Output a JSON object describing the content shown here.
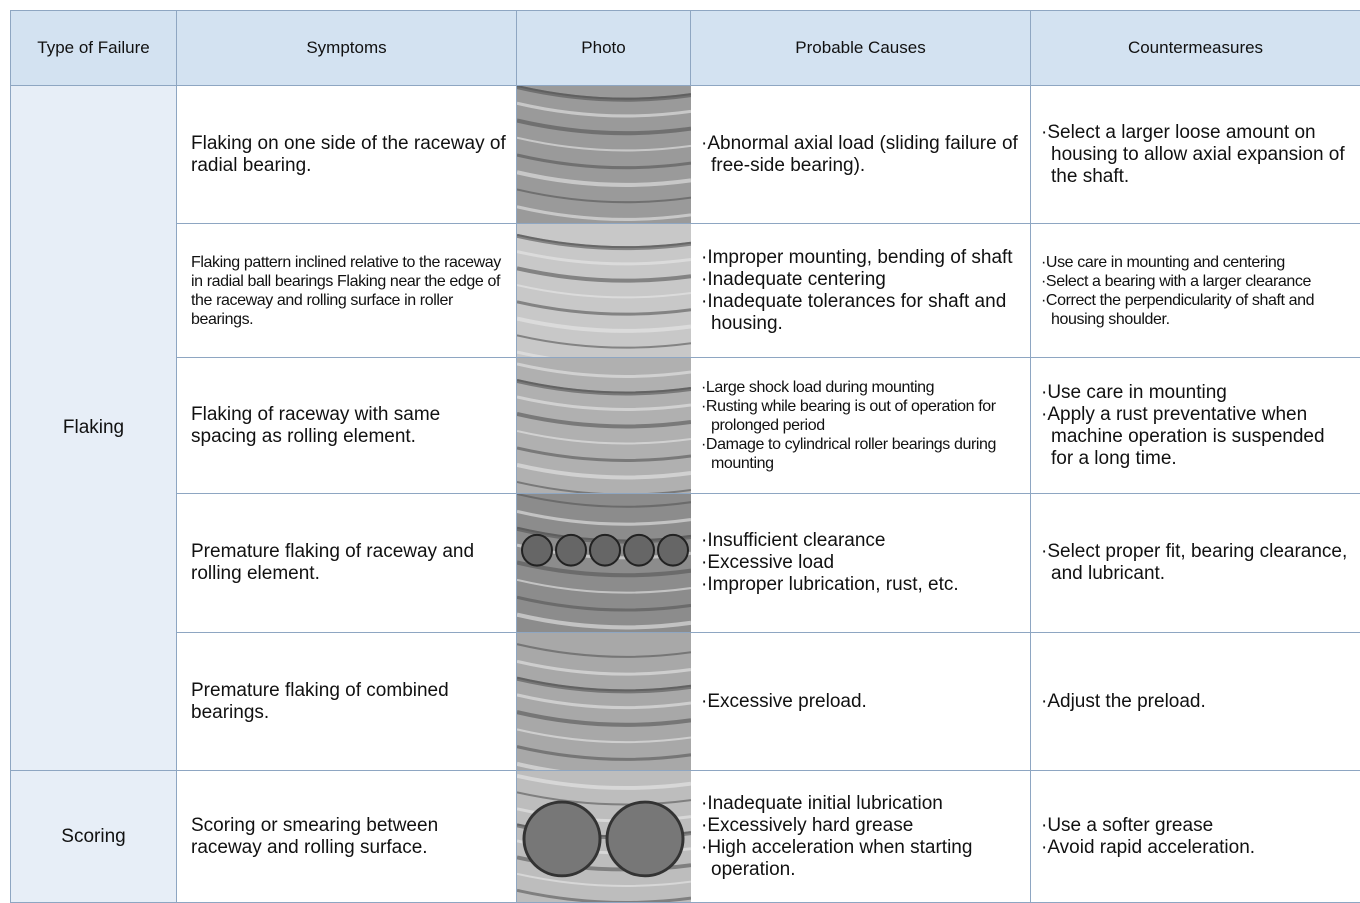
{
  "table": {
    "headers": [
      "Type of Failure",
      "Symptoms",
      "Photo",
      "Probable Causes",
      "Countermeasures"
    ],
    "groups": [
      {
        "failure": "Flaking",
        "rows": [
          {
            "symptom": "Flaking on one side of the raceway of radial bearing.",
            "causes": [
              "·Abnormal axial load (sliding failure of free-side bearing)."
            ],
            "countermeasures": [
              "·Select a larger loose amount on housing to allow axial expansion of the shaft."
            ]
          },
          {
            "symptom": "Flaking pattern inclined relative to the raceway in radial ball bearings Flaking near the edge of the raceway and rolling surface in roller bearings.",
            "causes": [
              "·Improper mounting, bending of shaft",
              "·Inadequate centering",
              "·Inadequate tolerances for shaft and housing."
            ],
            "countermeasures": [
              "·Use care in mounting and centering",
              "·Select a bearing with a larger clearance",
              "·Correct the perpendicularity of shaft and housing shoulder."
            ]
          },
          {
            "symptom": "Flaking of raceway with same spacing as rolling element.",
            "causes": [
              "·Large shock load during mounting",
              "·Rusting while bearing is out of operation for prolonged period",
              "·Damage to cylindrical roller bearings during mounting"
            ],
            "countermeasures": [
              "·Use care in mounting",
              "·Apply a rust preventative when machine operation is suspended for a long time."
            ]
          },
          {
            "symptom": "Premature flaking of raceway and rolling element.",
            "causes": [
              "·Insufficient clearance",
              "·Excessive load",
              "·Improper lubrication, rust, etc."
            ],
            "countermeasures": [
              "·Select proper fit, bearing clearance, and lubricant."
            ]
          },
          {
            "symptom": "Premature flaking of combined bearings.",
            "causes": [
              "·Excessive preload."
            ],
            "countermeasures": [
              "·Adjust the preload."
            ]
          }
        ]
      },
      {
        "failure": "Scoring",
        "rows": [
          {
            "symptom": "Scoring or smearing between raceway and rolling surface.",
            "causes": [
              "·Inadequate initial lubrication",
              "·Excessively hard grease",
              "·High acceleration when starting operation."
            ],
            "countermeasures": [
              "·Use a softer grease",
              "·Avoid rapid acceleration."
            ]
          }
        ]
      }
    ]
  }
}
